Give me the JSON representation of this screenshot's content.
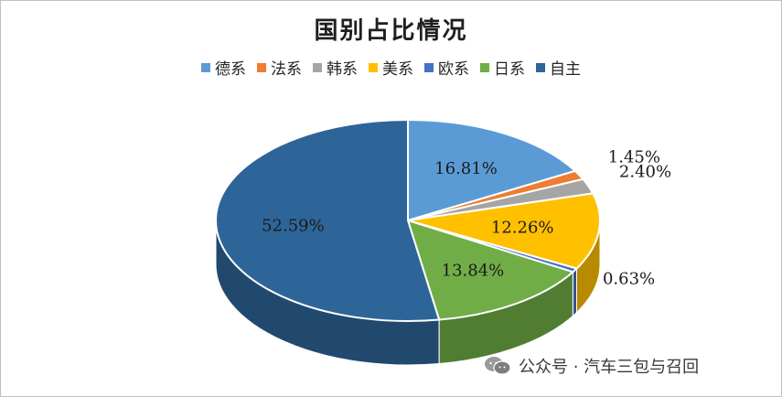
{
  "chart_data": {
    "type": "pie",
    "title": "国别占比情况",
    "legend_position": "top",
    "categories": [
      "德系",
      "法系",
      "韩系",
      "美系",
      "欧系",
      "日系",
      "自主"
    ],
    "values": [
      16.81,
      1.45,
      2.4,
      12.26,
      0.63,
      13.84,
      52.59
    ],
    "data_labels": [
      "16.81%",
      "1.45%",
      "2.40%",
      "12.26%",
      "0.63%",
      "13.84%",
      "52.59%"
    ],
    "colors": [
      "#5B9BD5",
      "#ED7D31",
      "#A5A5A5",
      "#FFC000",
      "#4472C4",
      "#70AD47",
      "#2E6599"
    ]
  },
  "watermark": {
    "icon": "wechat-icon",
    "text": "公众号 · 汽车三包与召回"
  }
}
